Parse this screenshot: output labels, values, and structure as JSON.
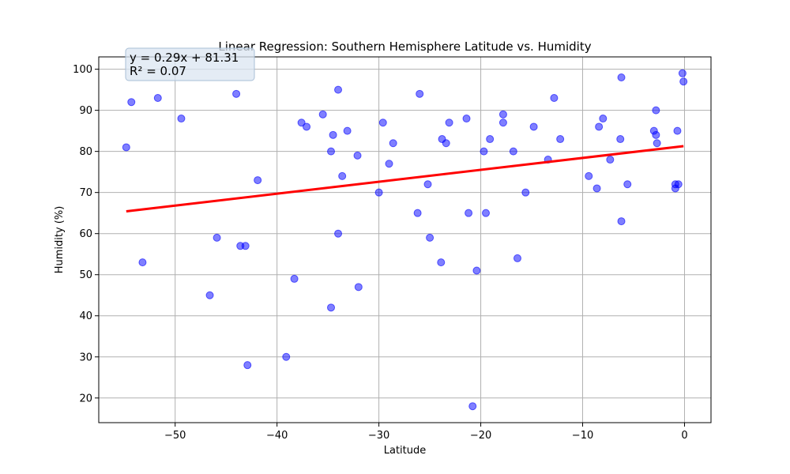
{
  "chart_data": {
    "type": "scatter",
    "title": "Linear Regression: Southern Hemisphere Latitude vs. Humidity",
    "xlabel": "Latitude",
    "ylabel": "Humidity (%)",
    "xlim": [
      -57.5,
      2.6
    ],
    "ylim": [
      14.0,
      103.0
    ],
    "xticks": [
      -50,
      -40,
      -30,
      -20,
      -10,
      0
    ],
    "xtick_labels": [
      "−50",
      "−40",
      "−30",
      "−20",
      "−10",
      "0"
    ],
    "yticks": [
      20,
      30,
      40,
      50,
      60,
      70,
      80,
      90,
      100
    ],
    "ytick_labels": [
      "20",
      "30",
      "40",
      "50",
      "60",
      "70",
      "80",
      "90",
      "100"
    ],
    "grid": true,
    "colors": {
      "points": "#0000ff",
      "regression": "#ff0000",
      "annotation_bg": "#dbe6f1"
    },
    "annotation": {
      "line1": "y = 0.29x + 81.31",
      "line2": "R² = 0.07"
    },
    "regression": {
      "slope": 0.29,
      "intercept": 81.31,
      "x_range": [
        -54.8,
        -0.1
      ]
    },
    "points": [
      [
        -54.8,
        81
      ],
      [
        -54.3,
        92
      ],
      [
        -53.2,
        53
      ],
      [
        -51.7,
        93
      ],
      [
        -49.4,
        88
      ],
      [
        -46.6,
        45
      ],
      [
        -45.9,
        59
      ],
      [
        -44.0,
        94
      ],
      [
        -43.6,
        57
      ],
      [
        -43.1,
        57
      ],
      [
        -42.9,
        28
      ],
      [
        -41.9,
        73
      ],
      [
        -39.1,
        30
      ],
      [
        -38.3,
        49
      ],
      [
        -37.6,
        87
      ],
      [
        -37.1,
        86
      ],
      [
        -35.5,
        89
      ],
      [
        -34.7,
        80
      ],
      [
        -34.7,
        42
      ],
      [
        -34.5,
        84
      ],
      [
        -34.0,
        95
      ],
      [
        -34.0,
        60
      ],
      [
        -33.6,
        74
      ],
      [
        -33.1,
        85
      ],
      [
        -32.1,
        79
      ],
      [
        -32.0,
        47
      ],
      [
        -30.0,
        70
      ],
      [
        -29.6,
        87
      ],
      [
        -29.0,
        77
      ],
      [
        -28.6,
        82
      ],
      [
        -26.2,
        65
      ],
      [
        -26.0,
        94
      ],
      [
        -25.2,
        72
      ],
      [
        -25.0,
        59
      ],
      [
        -23.9,
        53
      ],
      [
        -23.8,
        83
      ],
      [
        -23.4,
        82
      ],
      [
        -23.1,
        87
      ],
      [
        -21.4,
        88
      ],
      [
        -21.2,
        65
      ],
      [
        -20.8,
        18
      ],
      [
        -20.4,
        51
      ],
      [
        -19.7,
        80
      ],
      [
        -19.5,
        65
      ],
      [
        -19.1,
        83
      ],
      [
        -17.8,
        89
      ],
      [
        -17.8,
        87
      ],
      [
        -16.8,
        80
      ],
      [
        -16.4,
        54
      ],
      [
        -15.6,
        70
      ],
      [
        -14.8,
        86
      ],
      [
        -13.4,
        78
      ],
      [
        -12.8,
        93
      ],
      [
        -12.2,
        83
      ],
      [
        -9.4,
        74
      ],
      [
        -8.6,
        71
      ],
      [
        -8.4,
        86
      ],
      [
        -8.0,
        88
      ],
      [
        -7.3,
        78
      ],
      [
        -6.3,
        83
      ],
      [
        -6.2,
        98
      ],
      [
        -6.2,
        63
      ],
      [
        -5.6,
        72
      ],
      [
        -3.0,
        85
      ],
      [
        -2.8,
        84
      ],
      [
        -2.8,
        90
      ],
      [
        -2.7,
        82
      ],
      [
        -0.9,
        71
      ],
      [
        -0.9,
        72
      ],
      [
        -0.7,
        85
      ],
      [
        -0.6,
        72
      ],
      [
        -0.2,
        99
      ],
      [
        -0.1,
        97
      ]
    ]
  }
}
